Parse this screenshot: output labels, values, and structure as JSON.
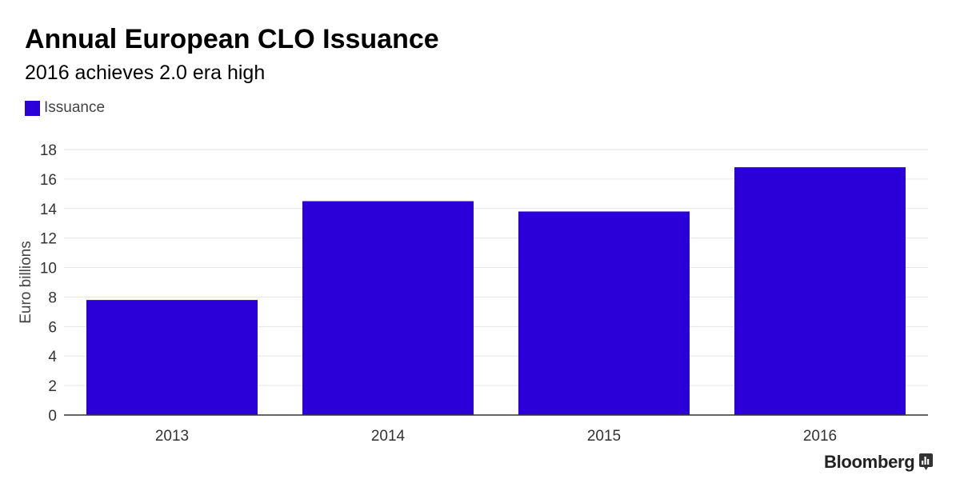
{
  "chart_data": {
    "type": "bar",
    "title": "Annual European CLO Issuance",
    "subtitle": "2016 achieves 2.0 era high",
    "categories": [
      "2013",
      "2014",
      "2015",
      "2016"
    ],
    "series": [
      {
        "name": "Issuance",
        "values": [
          7.8,
          14.5,
          13.8,
          16.8
        ],
        "color": "#2b00d8"
      }
    ],
    "xlabel": "",
    "ylabel": "Euro billions",
    "ylim": [
      0,
      18
    ],
    "yticks": [
      "0",
      "2",
      "4",
      "6",
      "8",
      "10",
      "12",
      "14",
      "16",
      "18"
    ],
    "grid": true,
    "legend_position": "top-left"
  },
  "branding": {
    "name": "Bloomberg",
    "icon": "bar-chart-icon"
  },
  "colors": {
    "bar": "#2b00d8",
    "grid": "#e6e6e6",
    "axis": "#333333"
  }
}
